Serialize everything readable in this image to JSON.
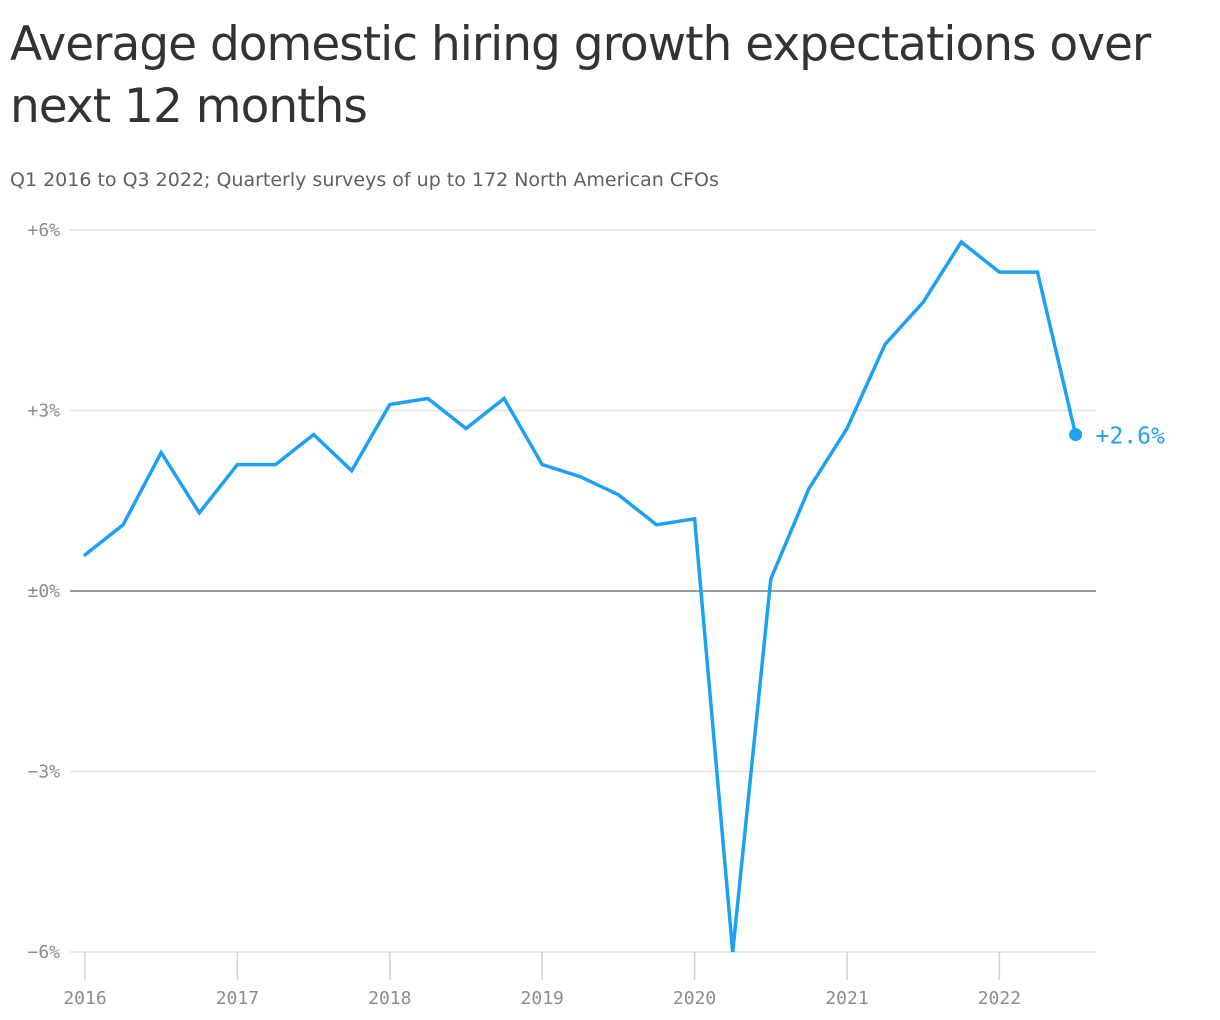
{
  "title": "Average domestic hiring growth expectations over next 12 months",
  "subtitle": "Q1 2016 to Q3 2022; Quarterly surveys of up to 172 North American CFOs",
  "chart_data": {
    "type": "line",
    "title": "Average domestic hiring growth expectations over next 12 months",
    "subtitle": "Q1 2016 to Q3 2022; Quarterly surveys of up to 172 North American CFOs",
    "xlabel": "",
    "ylabel": "",
    "ylim": [
      -6,
      6
    ],
    "yticks": [
      6,
      3,
      0,
      -3,
      -6
    ],
    "ytick_labels": [
      "+6%",
      "+3%",
      "±0%",
      "−3%",
      "−6%"
    ],
    "xticks": [
      "2016",
      "2017",
      "2018",
      "2019",
      "2020",
      "2021",
      "2022"
    ],
    "grid": true,
    "line_color": "#1da1f2",
    "end_label": "+2.6%",
    "x": [
      "Q1 2016",
      "Q2 2016",
      "Q3 2016",
      "Q4 2016",
      "Q1 2017",
      "Q2 2017",
      "Q3 2017",
      "Q4 2017",
      "Q1 2018",
      "Q2 2018",
      "Q3 2018",
      "Q4 2018",
      "Q1 2019",
      "Q2 2019",
      "Q3 2019",
      "Q4 2019",
      "Q1 2020",
      "Q2 2020",
      "Q3 2020",
      "Q4 2020",
      "Q1 2021",
      "Q2 2021",
      "Q3 2021",
      "Q4 2021",
      "Q1 2022",
      "Q2 2022",
      "Q3 2022"
    ],
    "values": [
      0.6,
      1.1,
      2.3,
      1.3,
      2.1,
      2.1,
      2.6,
      2.0,
      3.1,
      3.2,
      2.7,
      3.2,
      2.1,
      1.9,
      1.6,
      1.1,
      1.2,
      -6.0,
      0.2,
      1.7,
      2.7,
      4.1,
      4.8,
      5.8,
      5.3,
      5.3,
      2.6
    ]
  }
}
